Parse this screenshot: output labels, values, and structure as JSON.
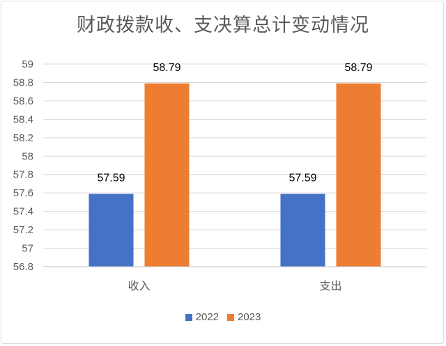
{
  "chart_data": {
    "type": "bar",
    "title": "财政拨款收、支决算总计变动情况",
    "categories": [
      "收入",
      "支出"
    ],
    "series": [
      {
        "name": "2022",
        "values": [
          57.59,
          57.59
        ],
        "color": "#4472c4"
      },
      {
        "name": "2023",
        "values": [
          58.79,
          58.79
        ],
        "color": "#ed7d31"
      }
    ],
    "ylim": [
      56.8,
      59
    ],
    "yticks": [
      "56.8",
      "57",
      "57.2",
      "57.4",
      "57.6",
      "57.8",
      "58",
      "58.2",
      "58.4",
      "58.6",
      "58.8",
      "59"
    ],
    "data_labels": [
      [
        "57.59",
        "57.59"
      ],
      [
        "58.79",
        "58.79"
      ]
    ],
    "grid": true,
    "legend_position": "bottom",
    "xlabel": "",
    "ylabel": ""
  }
}
